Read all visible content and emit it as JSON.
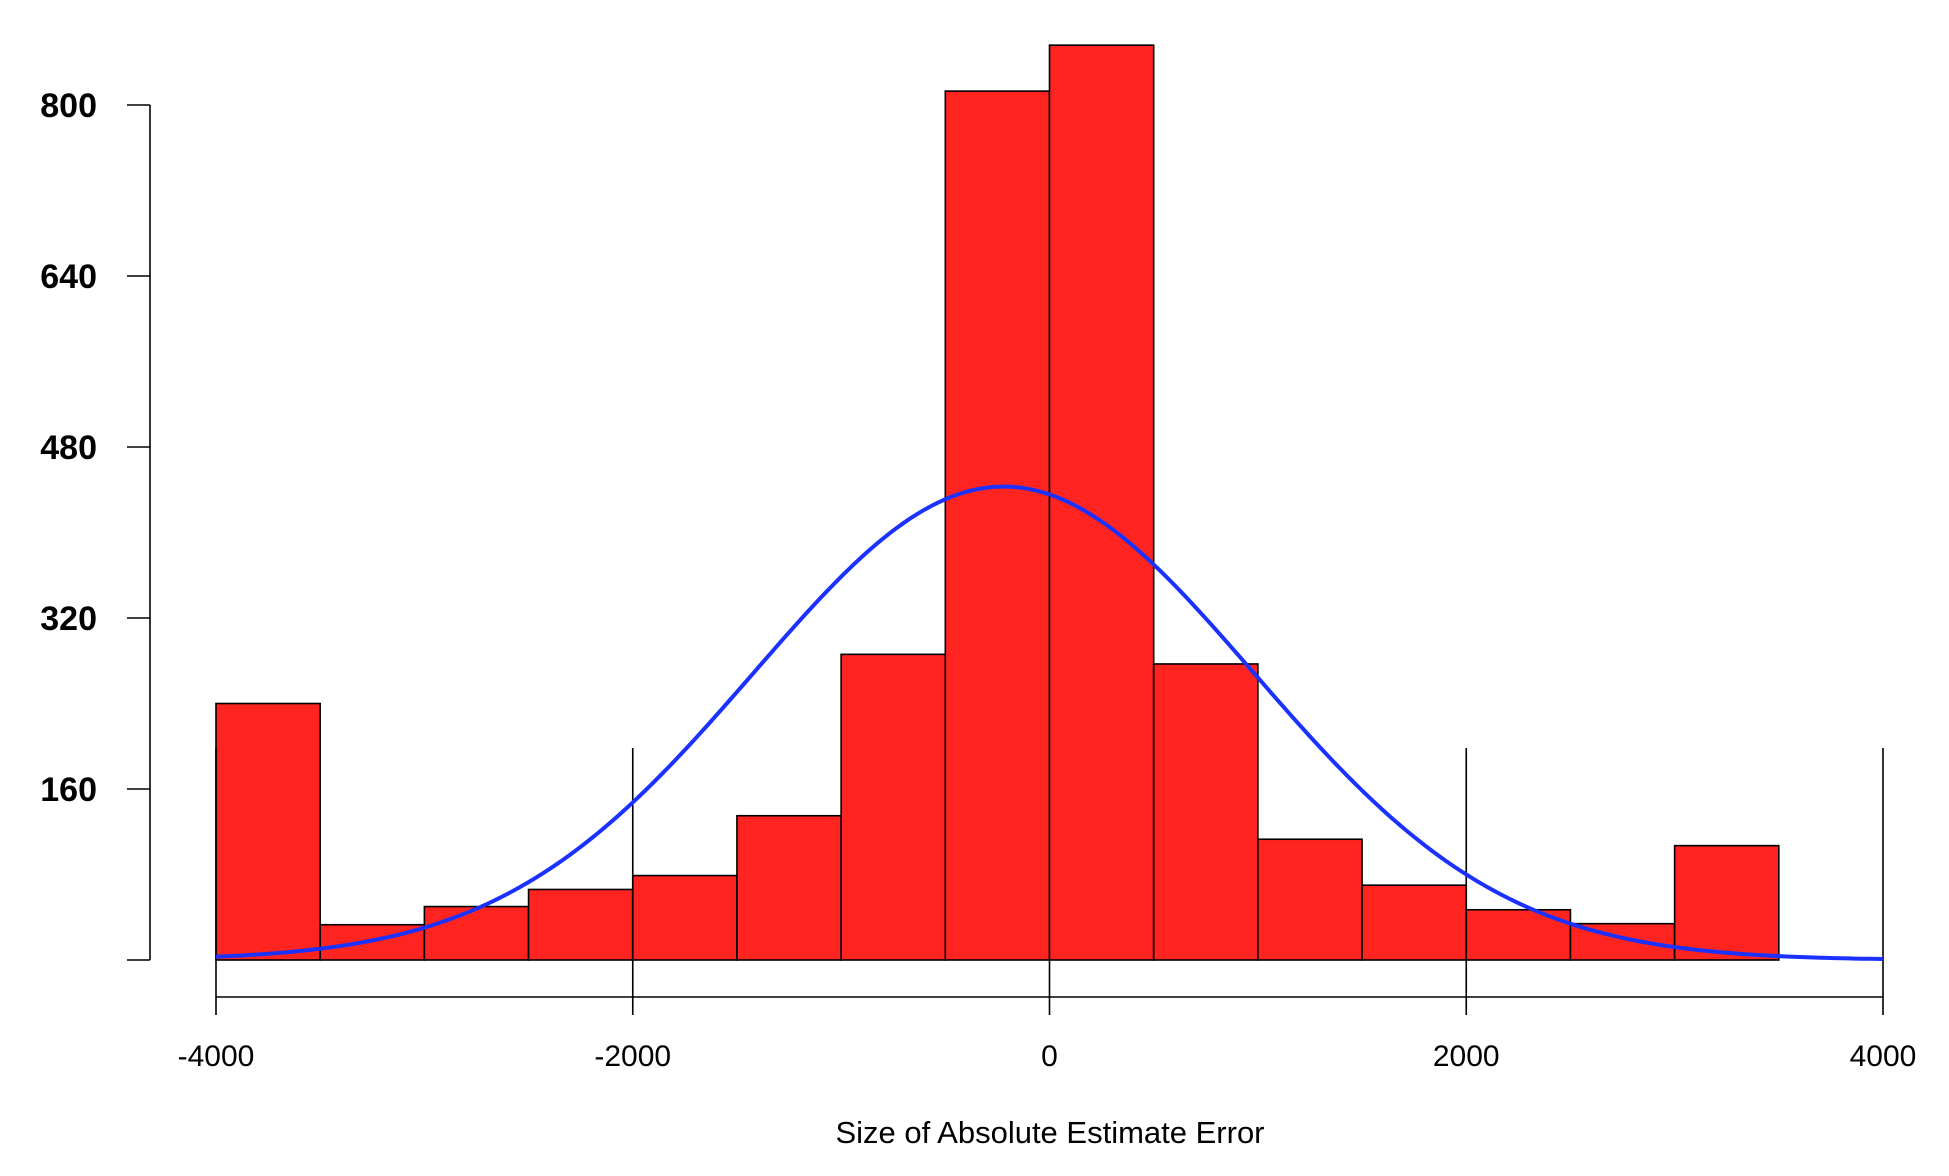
{
  "chart_data": {
    "type": "bar",
    "subtype": "histogram",
    "title": "",
    "xlabel": "Size of Absolute Estimate Error",
    "ylabel": "",
    "xlim": [
      -4000,
      4000
    ],
    "ylim": [
      0,
      800
    ],
    "x_ticks": [
      -4000,
      -2000,
      0,
      2000,
      4000
    ],
    "x_tick_labels": [
      "-4000",
      "-2000",
      "0",
      "2000",
      "4000"
    ],
    "y_ticks": [
      0,
      160,
      320,
      480,
      640,
      800
    ],
    "y_tick_labels": [
      "",
      "160",
      "320",
      "480",
      "640",
      "800"
    ],
    "bin_edges": [
      -4000,
      -3500,
      -3000,
      -2500,
      -2000,
      -1500,
      -1000,
      -500,
      0,
      500,
      1000,
      1500,
      2000,
      2500,
      3000,
      3500
    ],
    "values": [
      240,
      33,
      50,
      66,
      79,
      135,
      286,
      813,
      856,
      277,
      113,
      70,
      47,
      34,
      107
    ],
    "bar_color": "#ff2420",
    "bar_edge_color": "#000000",
    "curve": {
      "type": "normal-density",
      "color": "#1a31ff",
      "mean": -220,
      "sd": 1200,
      "peak": 443,
      "x_range": [
        -4000,
        4000
      ]
    },
    "grid": false,
    "legend": "none"
  }
}
